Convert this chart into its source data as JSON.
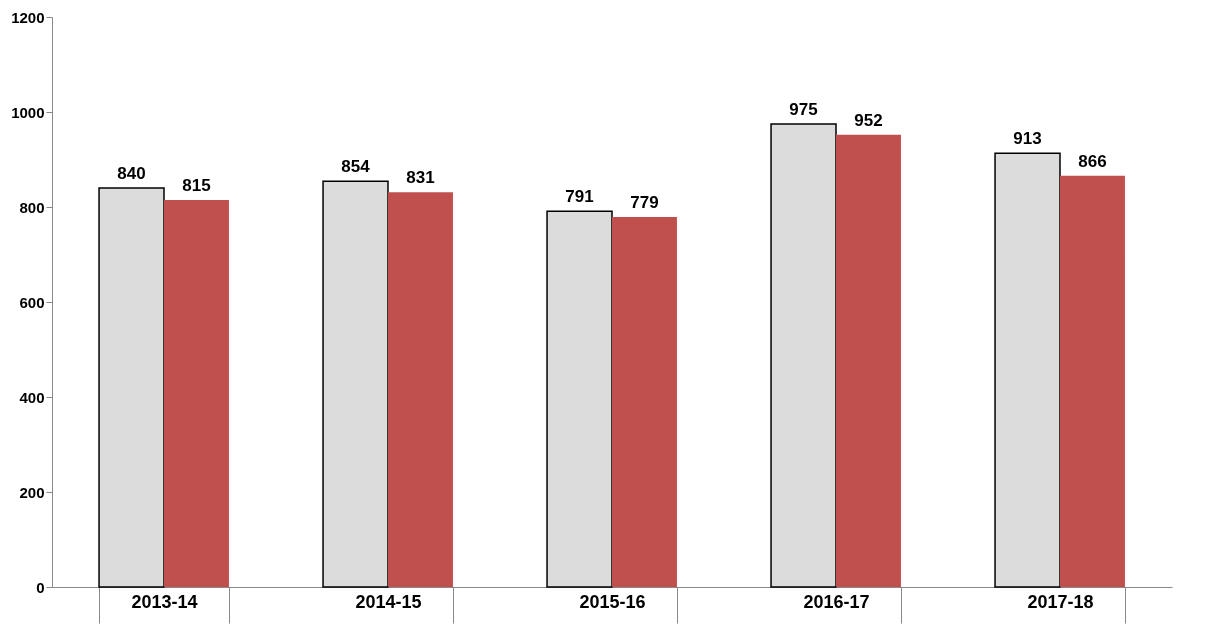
{
  "chart_data": {
    "type": "bar",
    "categories": [
      "2013-14",
      "2014-15",
      "2015-16",
      "2016-17",
      "2017-18"
    ],
    "series": [
      {
        "color": "#dcdcdc",
        "values": [
          840,
          854,
          791,
          975,
          913
        ]
      },
      {
        "color": "#c0504d",
        "values": [
          815,
          831,
          779,
          952,
          866
        ]
      }
    ],
    "ylim": [
      0,
      1200
    ],
    "yticks": [
      0,
      200,
      400,
      600,
      800,
      1000,
      1200
    ],
    "grid": false,
    "legend": false,
    "data_labels": true
  }
}
